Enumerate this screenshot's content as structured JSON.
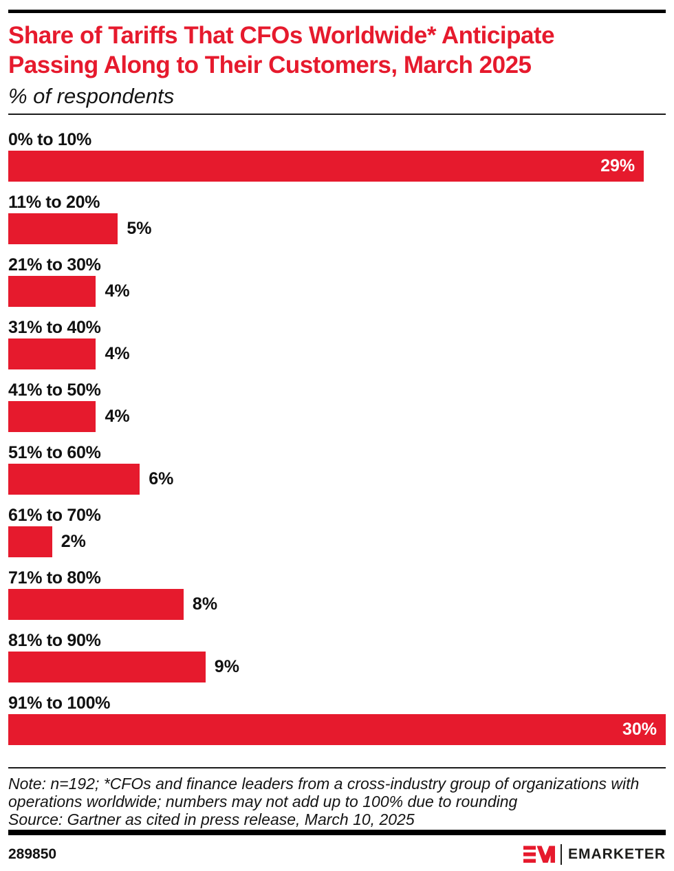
{
  "colors": {
    "accent_red": "#E61A2D",
    "bar_black": "#000000",
    "text": "#111111"
  },
  "header": {
    "title_line1": "Share of Tariffs That CFOs Worldwide* Anticipate",
    "title_line2": "Passing Along to Their Customers, March 2025",
    "subtitle": "% of respondents"
  },
  "chart_data": {
    "type": "bar",
    "orientation": "horizontal",
    "title": "Share of Tariffs That CFOs Worldwide* Anticipate Passing Along to Their Customers, March 2025",
    "subtitle": "% of respondents",
    "categories": [
      "0% to 10%",
      "11% to 20%",
      "21% to 30%",
      "31% to 40%",
      "41% to 50%",
      "51% to 60%",
      "61% to 70%",
      "71% to 80%",
      "81% to 90%",
      "91% to 100%"
    ],
    "values": [
      29,
      5,
      4,
      4,
      4,
      6,
      2,
      8,
      9,
      30
    ],
    "value_suffix": "%",
    "xlim": [
      0,
      30
    ],
    "grid": false,
    "legend": "none",
    "bar_color": "#E61A2D",
    "value_label_inside_threshold": 0.5
  },
  "footer": {
    "note": "Note: n=192; *CFOs and finance leaders from a cross-industry group of organizations with operations worldwide; numbers may not add up to 100% due to rounding",
    "source": "Source: Gartner as cited in press release, March 10, 2025",
    "chart_id": "289850",
    "brand": "EMARKETER"
  }
}
